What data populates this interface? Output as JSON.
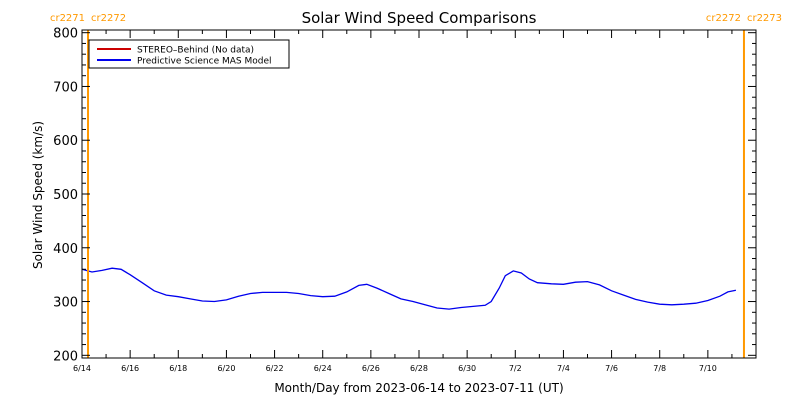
{
  "chart_data": {
    "type": "line",
    "title": "Solar Wind Speed Comparisons",
    "xlabel": "Month/Day from 2023-06-14 to 2023-07-11 (UT)",
    "ylabel": "Solar Wind Speed (km/s)",
    "ylim": [
      195,
      805
    ],
    "xlim": [
      "2023-06-14T00:00",
      "2023-07-12T00:00"
    ],
    "y_ticks": [
      200,
      300,
      400,
      500,
      600,
      700,
      800
    ],
    "x_ticks": [
      {
        "label": "6/14",
        "date": "2023-06-14"
      },
      {
        "label": "6/16",
        "date": "2023-06-16"
      },
      {
        "label": "6/18",
        "date": "2023-06-18"
      },
      {
        "label": "6/20",
        "date": "2023-06-20"
      },
      {
        "label": "6/22",
        "date": "2023-06-22"
      },
      {
        "label": "6/24",
        "date": "2023-06-24"
      },
      {
        "label": "6/26",
        "date": "2023-06-26"
      },
      {
        "label": "6/28",
        "date": "2023-06-28"
      },
      {
        "label": "6/30",
        "date": "2023-06-30"
      },
      {
        "label": "7/2",
        "date": "2023-07-02"
      },
      {
        "label": "7/4",
        "date": "2023-07-04"
      },
      {
        "label": "7/6",
        "date": "2023-07-06"
      },
      {
        "label": "7/8",
        "date": "2023-07-08"
      },
      {
        "label": "7/10",
        "date": "2023-07-10"
      }
    ],
    "grid": false,
    "legend_position": "top-left",
    "carrington_boundaries": [
      {
        "date": "2023-06-14T06:00",
        "label_left": "cr2271",
        "label_right": "cr2272",
        "color": "#ff9900"
      },
      {
        "date": "2023-07-11T12:00",
        "label_left": "cr2272",
        "label_right": "cr2273",
        "color": "#ff9900"
      }
    ],
    "series": [
      {
        "name": "STEREO–Behind (No data)",
        "color": "#cc0000",
        "points": []
      },
      {
        "name": "Predictive Science MAS Model",
        "color": "#0000ee",
        "points": [
          [
            "2023-06-14T00:00",
            360
          ],
          [
            "2023-06-14T10:00",
            355
          ],
          [
            "2023-06-14T20:00",
            358
          ],
          [
            "2023-06-15T06:00",
            362
          ],
          [
            "2023-06-15T15:00",
            360
          ],
          [
            "2023-06-16T00:00",
            350
          ],
          [
            "2023-06-16T12:00",
            335
          ],
          [
            "2023-06-17T00:00",
            320
          ],
          [
            "2023-06-17T12:00",
            312
          ],
          [
            "2023-06-18T00:00",
            309
          ],
          [
            "2023-06-18T12:00",
            305
          ],
          [
            "2023-06-19T00:00",
            301
          ],
          [
            "2023-06-19T12:00",
            300
          ],
          [
            "2023-06-20T00:00",
            303
          ],
          [
            "2023-06-20T12:00",
            310
          ],
          [
            "2023-06-21T00:00",
            315
          ],
          [
            "2023-06-21T12:00",
            317
          ],
          [
            "2023-06-22T00:00",
            317
          ],
          [
            "2023-06-22T12:00",
            317
          ],
          [
            "2023-06-23T00:00",
            315
          ],
          [
            "2023-06-23T12:00",
            311
          ],
          [
            "2023-06-24T00:00",
            309
          ],
          [
            "2023-06-24T12:00",
            310
          ],
          [
            "2023-06-25T00:00",
            318
          ],
          [
            "2023-06-25T12:00",
            330
          ],
          [
            "2023-06-25T20:00",
            332
          ],
          [
            "2023-06-26T06:00",
            325
          ],
          [
            "2023-06-26T18:00",
            315
          ],
          [
            "2023-06-27T06:00",
            305
          ],
          [
            "2023-06-27T18:00",
            300
          ],
          [
            "2023-06-28T06:00",
            294
          ],
          [
            "2023-06-28T18:00",
            288
          ],
          [
            "2023-06-29T06:00",
            286
          ],
          [
            "2023-06-29T18:00",
            289
          ],
          [
            "2023-06-30T06:00",
            291
          ],
          [
            "2023-06-30T18:00",
            293
          ],
          [
            "2023-07-01T00:00",
            300
          ],
          [
            "2023-07-01T08:00",
            325
          ],
          [
            "2023-07-01T14:00",
            348
          ],
          [
            "2023-07-01T22:00",
            357
          ],
          [
            "2023-07-02T06:00",
            353
          ],
          [
            "2023-07-02T14:00",
            342
          ],
          [
            "2023-07-02T22:00",
            335
          ],
          [
            "2023-07-03T12:00",
            333
          ],
          [
            "2023-07-04T00:00",
            332
          ],
          [
            "2023-07-04T12:00",
            336
          ],
          [
            "2023-07-05T00:00",
            337
          ],
          [
            "2023-07-05T12:00",
            331
          ],
          [
            "2023-07-06T00:00",
            320
          ],
          [
            "2023-07-06T12:00",
            312
          ],
          [
            "2023-07-07T00:00",
            304
          ],
          [
            "2023-07-07T12:00",
            299
          ],
          [
            "2023-07-08T00:00",
            295
          ],
          [
            "2023-07-08T12:00",
            294
          ],
          [
            "2023-07-09T00:00",
            295
          ],
          [
            "2023-07-09T12:00",
            297
          ],
          [
            "2023-07-10T00:00",
            302
          ],
          [
            "2023-07-10T12:00",
            310
          ],
          [
            "2023-07-10T20:00",
            318
          ],
          [
            "2023-07-11T04:00",
            321
          ]
        ]
      }
    ]
  }
}
